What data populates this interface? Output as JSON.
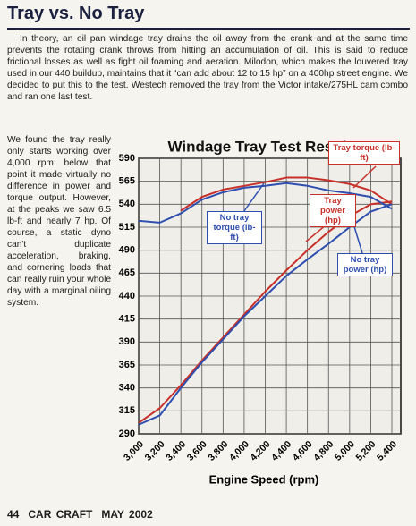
{
  "header": {
    "title": "Tray vs. No Tray"
  },
  "article": {
    "intro": "In theory, an oil pan windage tray drains the oil away from the crank and at the same time prevents the rotating crank throws from hitting an accumulation of oil. This is said to reduce frictional losses as well as fight oil foaming and aeration. Milodon, which makes the louvered tray used in our 440 buildup, maintains that it “can add about 12 to 15 hp” on a 400hp street engine. We decided to put this to the test. Westech removed the tray from the Victor intake/275HL cam combo and ran one last test.",
    "sidebar": "We found the tray really only starts working over 4,000 rpm; below that point it made virtually no difference in power and torque output. However, at the peaks we saw 6.5 lb-ft and nearly 7 hp. Of course, a static dyno can't duplicate acceleration, braking, and cornering loads that can really ruin your whole day with a marginal oiling system."
  },
  "chart_data": {
    "type": "line",
    "title": "Windage Tray Test Results",
    "x_label": "Engine Speed (rpm)",
    "categories": [
      "3,000",
      "3,200",
      "3,400",
      "3,600",
      "3,800",
      "4,000",
      "4,200",
      "4,400",
      "4,600",
      "4,800",
      "5,000",
      "5,200",
      "5,400"
    ],
    "ylim": [
      290,
      590
    ],
    "yticks": [
      290,
      315,
      340,
      365,
      390,
      415,
      440,
      465,
      490,
      515,
      540,
      565,
      590
    ],
    "grid": true,
    "series": [
      {
        "name": "Tray torque (lb-ft)",
        "color": "#c8302a",
        "values": [
          null,
          null,
          533,
          548,
          556,
          560,
          564,
          569,
          569,
          566,
          562,
          555,
          540
        ]
      },
      {
        "name": "Tray power (hp)",
        "color": "#c8302a",
        "values": [
          302,
          318,
          343,
          370,
          395,
          420,
          445,
          468,
          490,
          510,
          527,
          540,
          543
        ]
      },
      {
        "name": "No tray torque (lb-ft)",
        "color": "#2e4fb0",
        "values": [
          522,
          520,
          530,
          545,
          553,
          558,
          560,
          563,
          560,
          555,
          552,
          548,
          535
        ]
      },
      {
        "name": "No tray power (hp)",
        "color": "#2e4fb0",
        "values": [
          300,
          310,
          340,
          368,
          393,
          418,
          440,
          462,
          480,
          497,
          515,
          532,
          540
        ]
      }
    ]
  },
  "footer": {
    "page": "44",
    "magazine": "CAR CRAFT",
    "issue": "MAY 2002"
  }
}
